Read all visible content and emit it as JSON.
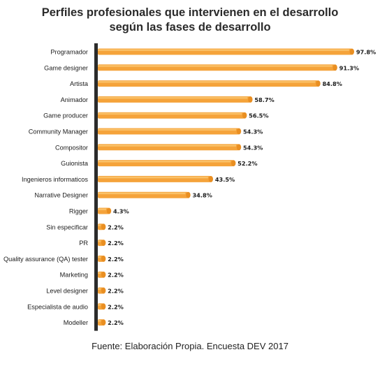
{
  "chart_data": {
    "type": "bar",
    "orientation": "horizontal",
    "title_lines": [
      "Perfiles profesionales que intervienen en el desarrollo",
      "según las fases de desarrollo"
    ],
    "categories": [
      "Programador",
      "Game designer",
      "Artista",
      "Animador",
      "Game producer",
      "Community Manager",
      "Compositor",
      "Guionista",
      "Ingenieros informaticos",
      "Narrative Designer",
      "Rigger",
      "Sin especificar",
      "PR",
      "Quality assurance (QA) tester",
      "Marketing",
      "Level designer",
      "Especialista de audio",
      "Modeller"
    ],
    "values": [
      97.8,
      91.3,
      84.8,
      58.7,
      56.5,
      54.3,
      54.3,
      52.2,
      43.5,
      34.8,
      4.3,
      2.2,
      2.2,
      2.2,
      2.2,
      2.2,
      2.2,
      2.2
    ],
    "value_labels": [
      "97.8%",
      "91.3%",
      "84.8%",
      "58.7%",
      "56.5%",
      "54.3%",
      "54.3%",
      "52.2%",
      "43.5%",
      "34.8%",
      "4.3%",
      "2.2%",
      "2.2%",
      "2.2%",
      "2.2%",
      "2.2%",
      "2.2%",
      "2.2%"
    ],
    "xlim": [
      0,
      100
    ],
    "bar_color": "#f5a33a",
    "bar_highlight": "#fbc46e",
    "axis_color": "#2b2b2b",
    "grid": false,
    "legend": "none"
  },
  "source": "Fuente: Elaboración Propia. Encuesta DEV 2017"
}
